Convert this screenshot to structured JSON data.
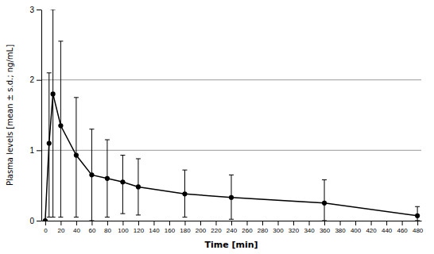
{
  "chart_data": {
    "type": "line",
    "xlabel": "Time [min]",
    "ylabel": "Plasma levels [mean ± s.d.; ng/mL]",
    "x": [
      0,
      5,
      10,
      20,
      40,
      60,
      80,
      100,
      120,
      180,
      240,
      360,
      480
    ],
    "series": [
      {
        "color": "#000000",
        "marker": "circle",
        "line_style": "solid",
        "values": [
          0.0,
          1.1,
          1.8,
          1.35,
          0.93,
          0.65,
          0.6,
          0.55,
          0.48,
          0.38,
          0.33,
          0.25,
          0.07
        ],
        "upper": [
          0.0,
          2.1,
          3.0,
          2.55,
          1.75,
          1.3,
          1.15,
          0.93,
          0.88,
          0.72,
          0.65,
          0.58,
          0.2
        ],
        "lower": [
          0.0,
          0.05,
          0.05,
          0.05,
          0.05,
          0.0,
          0.05,
          0.1,
          0.08,
          0.05,
          0.02,
          0.0,
          0.0
        ]
      }
    ],
    "xlim": [
      -5,
      485
    ],
    "ylim": [
      0,
      3
    ],
    "xticks": [
      0,
      20,
      40,
      60,
      80,
      100,
      120,
      140,
      160,
      180,
      200,
      220,
      240,
      260,
      280,
      300,
      320,
      340,
      360,
      380,
      400,
      420,
      440,
      460,
      480
    ],
    "yticks": [
      0,
      1,
      2,
      3
    ],
    "grid": true
  }
}
